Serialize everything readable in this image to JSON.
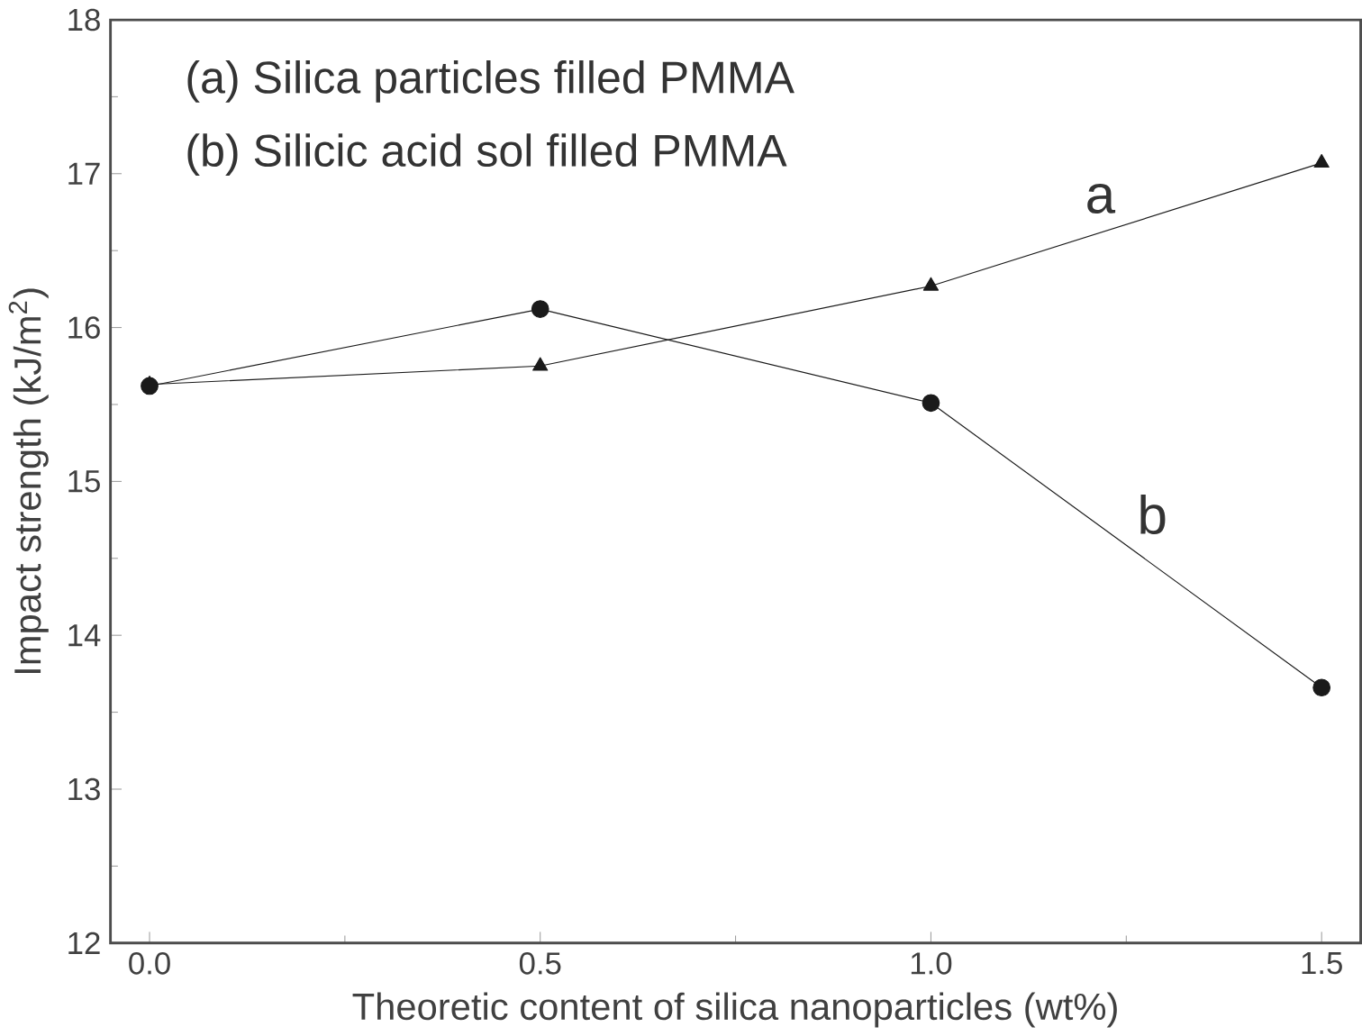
{
  "chart_data": {
    "type": "line",
    "xlabel": "Theoretic content of silica nanoparticles (wt%)",
    "ylabel": "Impact strength (kJ/m$^{2}$)",
    "x": [
      0,
      0.5,
      1.0,
      1.5
    ],
    "series": [
      {
        "name": "a",
        "color": "#1a1a1a",
        "marker": "triangle",
        "values": [
          15.63,
          15.75,
          16.27,
          17.07
        ]
      },
      {
        "name": "b",
        "color": "#1a1a1a",
        "marker": "circle",
        "values": [
          15.62,
          16.12,
          15.51,
          13.66
        ]
      }
    ],
    "annotations": [
      "(a) Silica particles filled PMMA",
      "(b) Silicic acid sol filled PMMA"
    ],
    "xlim": [
      -0.05,
      1.55
    ],
    "xticks": [
      {
        "value": 0,
        "label": "0.0"
      },
      0.5,
      {
        "value": 1,
        "label": "1.0"
      },
      1.5
    ],
    "ylim": [
      12,
      18
    ],
    "yticks": [
      12,
      13,
      14,
      15,
      16,
      17,
      18
    ],
    "grid": false,
    "legend": false,
    "line_style": "solid"
  }
}
